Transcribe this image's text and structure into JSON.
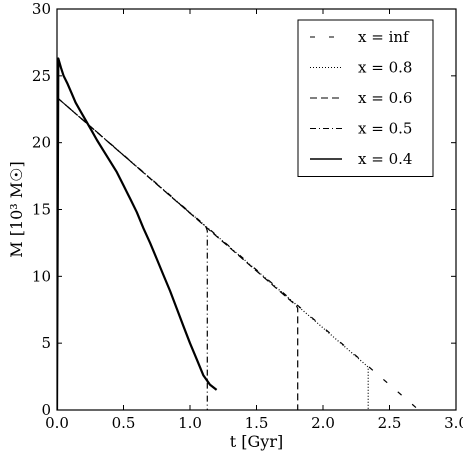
{
  "chart_data": {
    "type": "line",
    "xlabel": "t [Gyr]",
    "ylabel": "M [10³ M☉]",
    "xlim": [
      0.0,
      3.0
    ],
    "ylim": [
      0,
      30
    ],
    "xticks": [
      0.0,
      0.5,
      1.0,
      1.5,
      2.0,
      2.5,
      3.0
    ],
    "xtick_labels": [
      "0.0",
      "0.5",
      "1.0",
      "1.5",
      "2.0",
      "2.5",
      "3.0"
    ],
    "yticks": [
      0,
      5,
      10,
      15,
      20,
      25,
      30
    ],
    "ytick_labels": [
      "0",
      "5",
      "10",
      "15",
      "20",
      "25",
      "30"
    ],
    "grid": false,
    "legend_position": "top-right",
    "series": [
      {
        "name": "x = inf",
        "style": "dash-sparse",
        "color": "#000000",
        "x": [
          0.0,
          0.01,
          2.72
        ],
        "y": [
          0,
          23.3,
          0
        ]
      },
      {
        "name": "x = 0.8",
        "style": "dotted",
        "color": "#000000",
        "x": [
          0.0,
          0.01,
          2.33,
          2.34,
          2.34
        ],
        "y": [
          0,
          23.3,
          3.3,
          3.2,
          0
        ]
      },
      {
        "name": "x = 0.6",
        "style": "dashed",
        "color": "#000000",
        "x": [
          0.0,
          0.01,
          1.8,
          1.81,
          1.81
        ],
        "y": [
          0,
          23.3,
          7.8,
          7.6,
          0
        ]
      },
      {
        "name": "x = 0.5",
        "style": "dash-dot",
        "color": "#000000",
        "x": [
          0.0,
          0.01,
          1.12,
          1.13,
          1.13
        ],
        "y": [
          0,
          23.3,
          13.7,
          13.4,
          0
        ]
      },
      {
        "name": "x = 0.4",
        "style": "solid",
        "color": "#000000",
        "x": [
          0.0,
          0.01,
          0.03,
          0.05,
          0.08,
          0.11,
          0.14,
          0.18,
          0.22,
          0.26,
          0.3,
          0.35,
          0.4,
          0.45,
          0.5,
          0.55,
          0.6,
          0.65,
          0.7,
          0.75,
          0.8,
          0.85,
          0.9,
          0.95,
          1.0,
          1.05,
          1.1,
          1.15,
          1.2
        ],
        "y": [
          0,
          26.3,
          25.6,
          25.0,
          24.4,
          23.7,
          23.0,
          22.3,
          21.6,
          20.9,
          20.2,
          19.4,
          18.6,
          17.8,
          16.8,
          15.8,
          14.8,
          13.6,
          12.5,
          11.3,
          10.1,
          8.9,
          7.6,
          6.3,
          5.0,
          3.8,
          2.6,
          1.9,
          1.5
        ]
      }
    ]
  }
}
